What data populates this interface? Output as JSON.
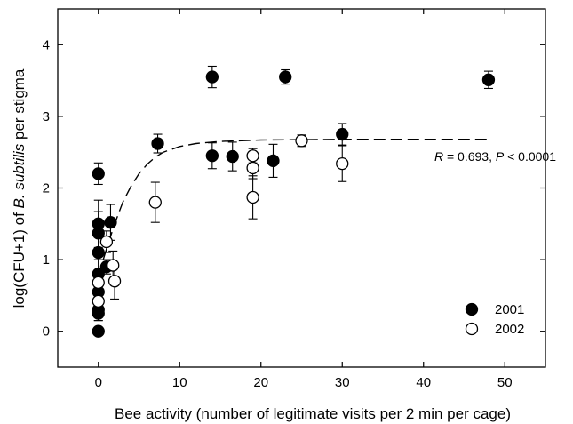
{
  "chart_data": {
    "type": "scatter",
    "xlabel": "Bee activity (number of legitimate visits per 2 min per cage)",
    "ylabel_parts": [
      "log(CFU+1) of ",
      "B. subtilis",
      " per stigma"
    ],
    "xlim": [
      -5,
      55
    ],
    "ylim": [
      -0.5,
      4.5
    ],
    "xticks": [
      0,
      10,
      20,
      30,
      40,
      50
    ],
    "yticks": [
      0,
      1,
      2,
      3,
      4
    ],
    "grid": false,
    "legend_position": "bottom-right",
    "annotation": {
      "r_label": "R",
      "r_text": " = 0.693, ",
      "p_label": "P",
      "p_text": " < 0.0001"
    },
    "series": [
      {
        "name": "2001",
        "marker": "filled-circle",
        "color": "#000000",
        "points": [
          {
            "x": 0,
            "y": 2.2,
            "err": 0.15
          },
          {
            "x": 0,
            "y": 1.5,
            "err": 0.33
          },
          {
            "x": 0,
            "y": 1.37,
            "err": 0.3
          },
          {
            "x": 0,
            "y": 1.1,
            "err": 0.25
          },
          {
            "x": 0,
            "y": 0.8,
            "err": 0.2
          },
          {
            "x": 0,
            "y": 0.55,
            "err": 0.2
          },
          {
            "x": 0,
            "y": 0.3,
            "err": 0.15
          },
          {
            "x": 0,
            "y": 0.25,
            "err": 0.1
          },
          {
            "x": 0,
            "y": 0.0,
            "err": 0
          },
          {
            "x": 1,
            "y": 0.9,
            "err": 0.1
          },
          {
            "x": 1.5,
            "y": 1.52,
            "err": 0.25
          },
          {
            "x": 7.3,
            "y": 2.62,
            "err": 0.13
          },
          {
            "x": 14,
            "y": 3.55,
            "err": 0.15
          },
          {
            "x": 14,
            "y": 2.45,
            "err": 0.18
          },
          {
            "x": 16.5,
            "y": 2.44,
            "err": 0.2
          },
          {
            "x": 21.5,
            "y": 2.38,
            "err": 0.23
          },
          {
            "x": 23,
            "y": 3.55,
            "err": 0.1
          },
          {
            "x": 30,
            "y": 2.75,
            "err": 0.15
          },
          {
            "x": 48,
            "y": 3.51,
            "err": 0.12
          }
        ]
      },
      {
        "name": "2002",
        "marker": "open-circle",
        "color": "#000000",
        "points": [
          {
            "x": 0,
            "y": 0.42,
            "err": 0.15
          },
          {
            "x": 0,
            "y": 0.68,
            "err": 0.15
          },
          {
            "x": 1,
            "y": 1.25,
            "err": 0.15
          },
          {
            "x": 1.8,
            "y": 0.92,
            "err": 0.2
          },
          {
            "x": 2,
            "y": 0.7,
            "err": 0.25
          },
          {
            "x": 7,
            "y": 1.8,
            "err": 0.28
          },
          {
            "x": 19,
            "y": 1.87,
            "err": 0.3
          },
          {
            "x": 19,
            "y": 2.28,
            "err": 0.15
          },
          {
            "x": 19,
            "y": 2.45,
            "err": 0.1
          },
          {
            "x": 25,
            "y": 2.66,
            "err": 0.08
          },
          {
            "x": 30,
            "y": 2.34,
            "err": 0.25
          }
        ]
      }
    ],
    "fit_curve": {
      "style": "dashed",
      "points": [
        [
          0,
          0.78
        ],
        [
          1,
          1.15
        ],
        [
          2,
          1.5
        ],
        [
          3,
          1.8
        ],
        [
          4,
          2.02
        ],
        [
          5,
          2.2
        ],
        [
          6,
          2.33
        ],
        [
          7,
          2.43
        ],
        [
          8,
          2.5
        ],
        [
          10,
          2.58
        ],
        [
          12,
          2.62
        ],
        [
          15,
          2.65
        ],
        [
          20,
          2.67
        ],
        [
          30,
          2.68
        ],
        [
          40,
          2.68
        ],
        [
          48,
          2.68
        ]
      ]
    }
  }
}
